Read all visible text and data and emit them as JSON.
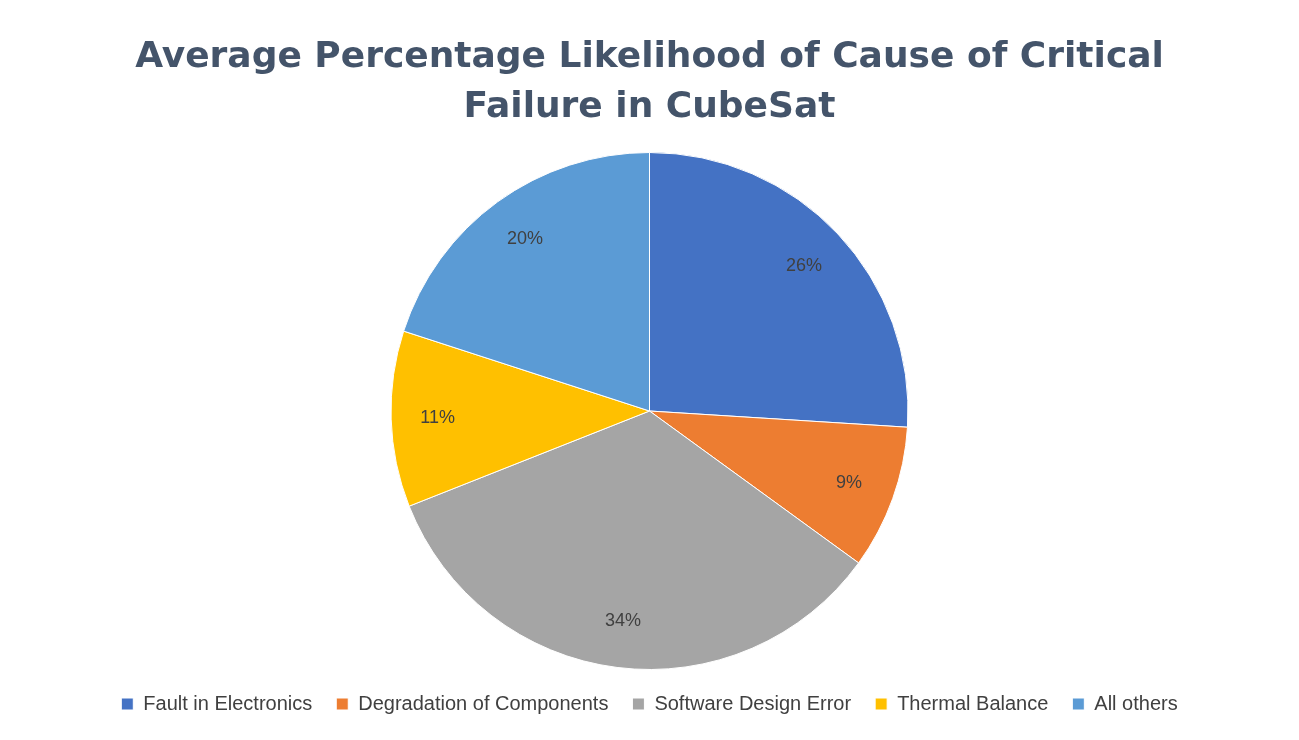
{
  "chart_data": {
    "type": "pie",
    "title": "Average Percentage Likelihood of Cause of Critical Failure in CubeSat",
    "categories": [
      "Fault in Electronics",
      "Degradation of Components",
      "Software Design Error",
      "Thermal Balance",
      "All others"
    ],
    "values": [
      26,
      9,
      34,
      11,
      20
    ],
    "colors": [
      "#4472c4",
      "#ed7d31",
      "#a5a5a5",
      "#ffc000",
      "#5b9bd5"
    ],
    "value_labels": [
      "26%",
      "9%",
      "34%",
      "11%",
      "20%"
    ],
    "legend": "bottom"
  }
}
